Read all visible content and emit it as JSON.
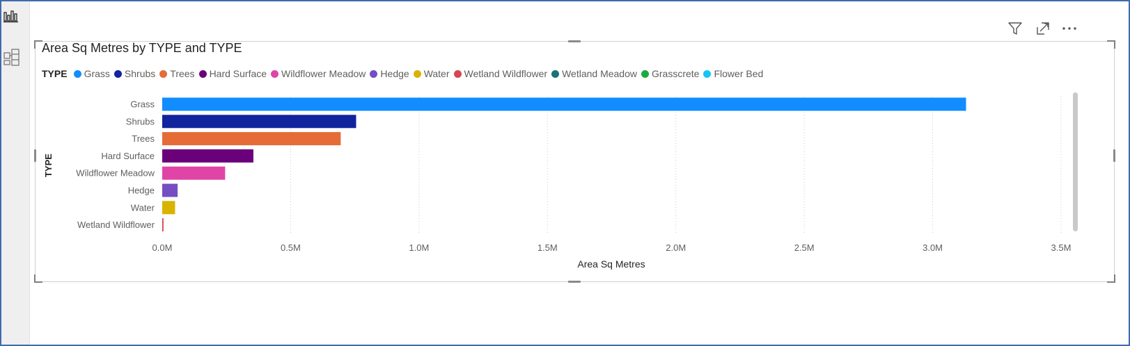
{
  "icons": {
    "report_view": "bar-chart-icon",
    "model_view": "table-view-icon",
    "filter": "filter-icon",
    "focus_mode": "focus-mode-icon",
    "more_options": "more-options-icon"
  },
  "chart_data": {
    "type": "bar",
    "orientation": "horizontal",
    "title": "Area Sq Metres by TYPE and TYPE",
    "legend_title": "TYPE",
    "legend_position": "top-left",
    "legend": [
      {
        "label": "Grass",
        "color": "#118DFF"
      },
      {
        "label": "Shrubs",
        "color": "#12239E"
      },
      {
        "label": "Trees",
        "color": "#E66C37"
      },
      {
        "label": "Hard Surface",
        "color": "#6B007B"
      },
      {
        "label": "Wildflower Meadow",
        "color": "#E044A7"
      },
      {
        "label": "Hedge",
        "color": "#744EC2"
      },
      {
        "label": "Water",
        "color": "#D9B300"
      },
      {
        "label": "Wetland Wildflower",
        "color": "#D64550"
      },
      {
        "label": "Wetland Meadow",
        "color": "#197278"
      },
      {
        "label": "Grasscrete",
        "color": "#1AAB40"
      },
      {
        "label": "Flower Bed",
        "color": "#15C6F4"
      }
    ],
    "categories": [
      "Grass",
      "Shrubs",
      "Trees",
      "Hard Surface",
      "Wildflower Meadow",
      "Hedge",
      "Water",
      "Wetland Wildflower"
    ],
    "values": [
      3130000,
      755000,
      695000,
      355000,
      245000,
      60000,
      50000,
      5000
    ],
    "xlabel": "Area Sq Metres",
    "ylabel": "TYPE",
    "xlim": [
      0,
      3500000
    ],
    "xticks": [
      0,
      500000,
      1000000,
      1500000,
      2000000,
      2500000,
      3000000,
      3500000
    ],
    "xtick_labels": [
      "0.0M",
      "0.5M",
      "1.0M",
      "1.5M",
      "2.0M",
      "2.5M",
      "3.0M",
      "3.5M"
    ],
    "grid": "vertical dotted"
  }
}
